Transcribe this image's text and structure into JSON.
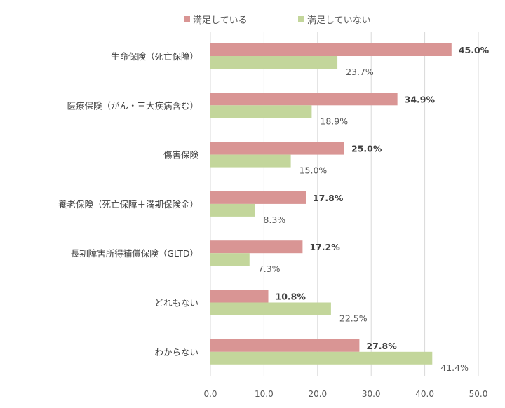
{
  "chart_data": {
    "type": "bar",
    "orientation": "horizontal",
    "categories": [
      "生命保険（死亡保障）",
      "医療保険（がん・三大疾病含む）",
      "傷害保険",
      "養老保険（死亡保障＋満期保険金）",
      "長期障害所得補償保険（GLTD）",
      "どれもない",
      "わからない"
    ],
    "series": [
      {
        "name": "満足している",
        "color": "#d99594",
        "values": [
          45.0,
          34.9,
          25.0,
          17.8,
          17.2,
          10.8,
          27.8
        ],
        "labels": [
          "45.0%",
          "34.9%",
          "25.0%",
          "17.8%",
          "17.2%",
          "10.8%",
          "27.8%"
        ]
      },
      {
        "name": "満足していない",
        "color": "#c3d69b",
        "values": [
          23.7,
          18.9,
          15.0,
          8.3,
          7.3,
          22.5,
          41.4
        ],
        "labels": [
          "23.7%",
          "18.9%",
          "15.0%",
          "8.3%",
          "7.3%",
          "22.5%",
          "41.4%"
        ]
      }
    ],
    "xlim": [
      0,
      50
    ],
    "xticks": [
      "0.0",
      "10.0",
      "20.0",
      "30.0",
      "40.0",
      "50.0"
    ],
    "grid": true,
    "legend": "top"
  }
}
